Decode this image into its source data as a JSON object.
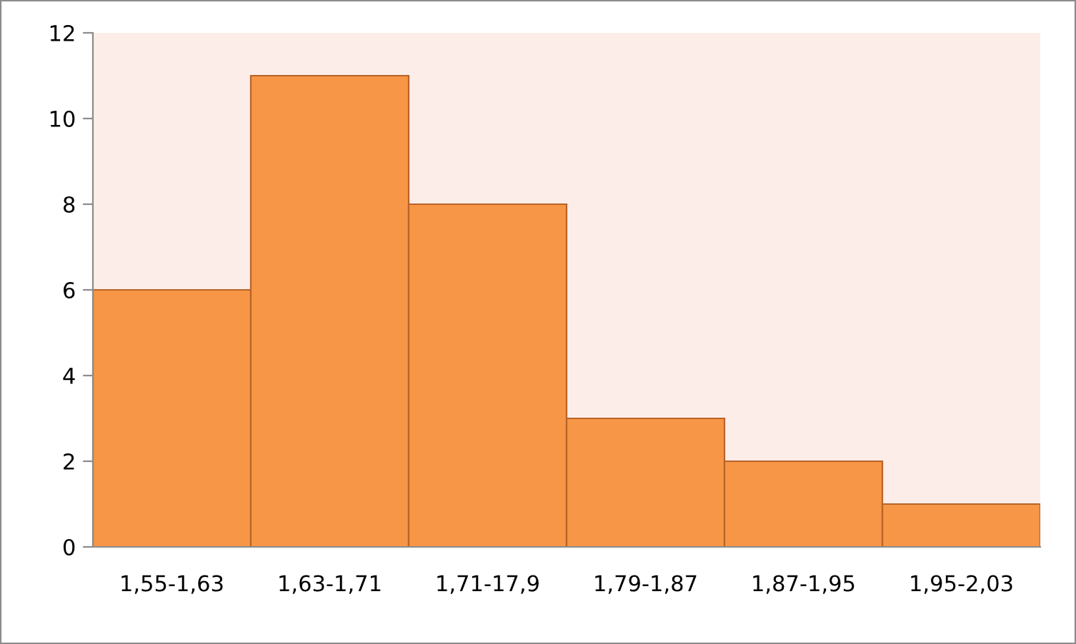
{
  "chart_data": {
    "type": "bar",
    "categories": [
      "1,55-1,63",
      "1,63-1,71",
      "1,71-17,9",
      "1,79-1,87",
      "1,87-1,95",
      "1,95-2,03"
    ],
    "values": [
      6,
      11,
      8,
      3,
      2,
      1
    ],
    "color": "#f79646",
    "ylim": [
      0,
      12
    ],
    "yticks": [
      0,
      2,
      4,
      6,
      8,
      10,
      12
    ],
    "grid": false,
    "legend": false
  }
}
